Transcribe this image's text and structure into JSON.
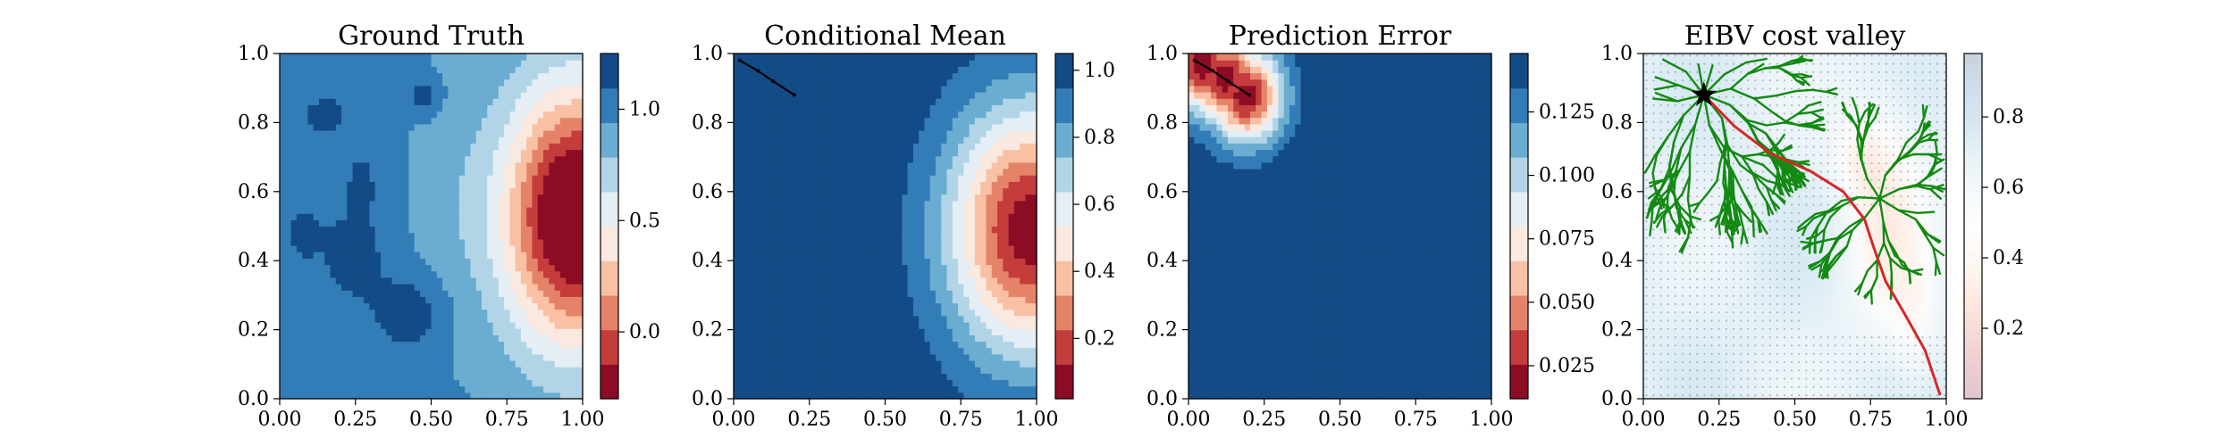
{
  "chart_data": [
    {
      "type": "heatmap",
      "title": "Ground Truth",
      "xlim": [
        0,
        1
      ],
      "ylim": [
        0,
        1
      ],
      "xticks": [
        "0.00",
        "0.25",
        "0.50",
        "0.75",
        "1.00"
      ],
      "yticks": [
        "0.0",
        "0.2",
        "0.4",
        "0.6",
        "0.8",
        "1.0"
      ],
      "colormap": "RdBu",
      "colorbar": {
        "range": [
          -0.3,
          1.25
        ],
        "levels": 10,
        "ticks": [
          "0.0",
          "0.5",
          "1.0"
        ],
        "tick_values": [
          0.0,
          0.5,
          1.0
        ]
      },
      "field": "Smooth blue background (~1.0) with darker blue patches (~1.15) and a red hotspot (~-0.25) centred near (0.97, 0.53)"
    },
    {
      "type": "heatmap",
      "title": "Conditional Mean",
      "xlim": [
        0,
        1
      ],
      "ylim": [
        0,
        1
      ],
      "xticks": [
        "0.00",
        "0.25",
        "0.50",
        "0.75",
        "1.00"
      ],
      "yticks": [
        "0.0",
        "0.2",
        "0.4",
        "0.6",
        "0.8",
        "1.0"
      ],
      "colormap": "RdBu",
      "colorbar": {
        "range": [
          0.02,
          1.05
        ],
        "levels": 10,
        "ticks": [
          "0.2",
          "0.4",
          "0.6",
          "0.8",
          "1.0"
        ],
        "tick_values": [
          0.2,
          0.4,
          0.6,
          0.8,
          1.0
        ]
      },
      "field": "Uniform dark blue (~1.0) with a radial red low (~0.05) centred near (0.97, 0.49)",
      "path": [
        [
          0.02,
          0.98
        ],
        [
          0.08,
          0.95
        ],
        [
          0.13,
          0.92
        ],
        [
          0.2,
          0.88
        ]
      ]
    },
    {
      "type": "heatmap",
      "title": "Prediction Error",
      "xlim": [
        0,
        1
      ],
      "ylim": [
        0,
        1
      ],
      "xticks": [
        "0.00",
        "0.25",
        "0.50",
        "0.75",
        "1.00"
      ],
      "yticks": [
        "0.0",
        "0.2",
        "0.4",
        "0.6",
        "0.8",
        "1.0"
      ],
      "colormap": "RdBu",
      "colorbar": {
        "range": [
          0.012,
          0.148
        ],
        "levels": 10,
        "ticks": [
          "0.025",
          "0.050",
          "0.075",
          "0.100",
          "0.125"
        ],
        "tick_values": [
          0.025,
          0.05,
          0.075,
          0.1,
          0.125
        ]
      },
      "field": "Uniform dark blue (~0.145) with a small red low (~0.015) along the sampled path in the upper-left corner",
      "path": [
        [
          0.02,
          0.98
        ],
        [
          0.08,
          0.95
        ],
        [
          0.13,
          0.92
        ],
        [
          0.2,
          0.88
        ]
      ]
    },
    {
      "type": "heatmap",
      "title": "EIBV cost valley",
      "xlim": [
        0,
        1
      ],
      "ylim": [
        0,
        1
      ],
      "xticks": [
        "0.00",
        "0.25",
        "0.50",
        "0.75",
        "1.00"
      ],
      "yticks": [
        "0.0",
        "0.2",
        "0.4",
        "0.6",
        "0.8",
        "1.0"
      ],
      "colormap": "RdBu (transparent)",
      "colorbar": {
        "range": [
          0.0,
          0.98
        ],
        "ticks": [
          "0.2",
          "0.4",
          "0.6",
          "0.8"
        ],
        "tick_values": [
          0.2,
          0.4,
          0.6,
          0.8
        ]
      },
      "field": "Light blue background with a pinkish high-cost region along x ~0.7-0.9, shown with grey location grid and green RRT* tree branches",
      "start": [
        0.2,
        0.88
      ],
      "red_path": [
        [
          0.2,
          0.88
        ],
        [
          0.3,
          0.79
        ],
        [
          0.42,
          0.71
        ],
        [
          0.55,
          0.66
        ],
        [
          0.66,
          0.6
        ],
        [
          0.73,
          0.52
        ],
        [
          0.76,
          0.44
        ],
        [
          0.8,
          0.34
        ],
        [
          0.86,
          0.25
        ],
        [
          0.93,
          0.14
        ],
        [
          0.98,
          0.01
        ]
      ],
      "tree_color": "#138a13",
      "path_color": "#d62728"
    }
  ]
}
